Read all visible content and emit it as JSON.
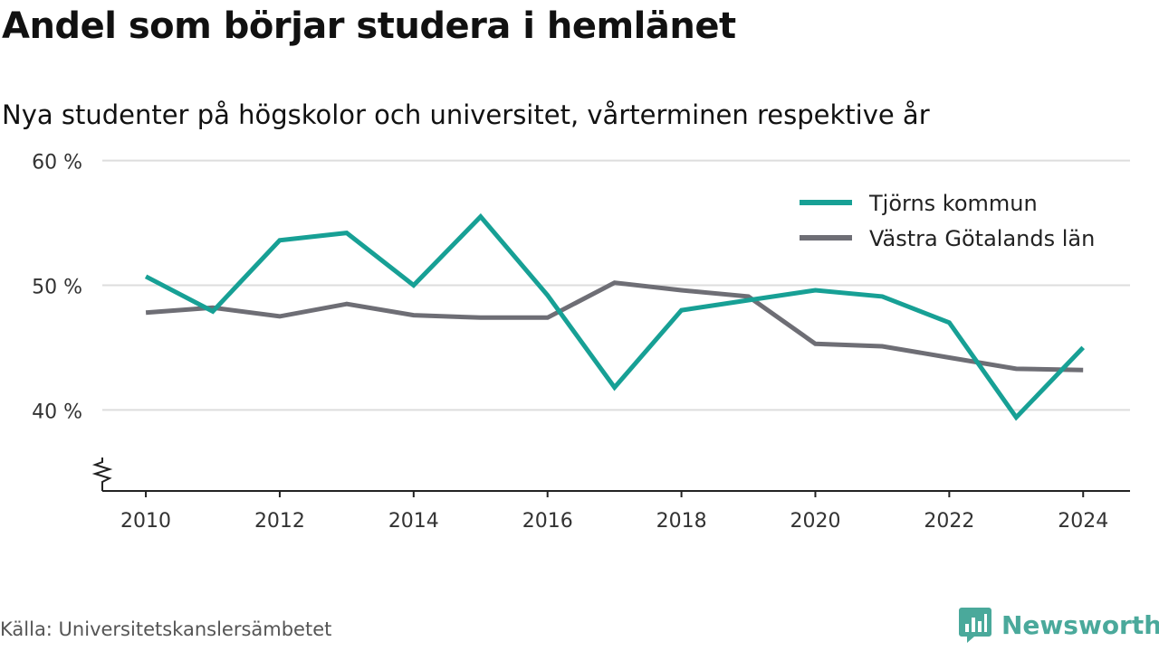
{
  "title": "Andel som börjar studera i hemlänet",
  "subtitle": "Nya studenter på högskolor och universitet, vårterminen respektive år",
  "source": "Källa: Universitetskanslersämbetet",
  "brand": {
    "name": "Newsworthy",
    "icon": "newsworthy-logo-icon",
    "color": "#4aa99b"
  },
  "chart_data": {
    "type": "line",
    "x": [
      2010,
      2011,
      2012,
      2013,
      2014,
      2015,
      2016,
      2017,
      2018,
      2019,
      2020,
      2021,
      2022,
      2023,
      2024
    ],
    "x_ticks": [
      "2010",
      "2012",
      "2014",
      "2016",
      "2018",
      "2020",
      "2022",
      "2024"
    ],
    "y_ticks": [
      "40 %",
      "50 %",
      "60 %"
    ],
    "ylim": [
      33.5,
      62
    ],
    "y_axis_break": true,
    "grid": "horizontal",
    "legend_position": "top-right",
    "series": [
      {
        "name": "Tjörns kommun",
        "color": "#17a095",
        "values": [
          50.7,
          47.9,
          53.6,
          54.2,
          50.0,
          55.5,
          49.2,
          41.8,
          48.0,
          48.8,
          49.6,
          49.1,
          47.0,
          39.4,
          45.0
        ]
      },
      {
        "name": "Västra Götalands län",
        "color": "#6e6e75",
        "values": [
          47.8,
          48.2,
          47.5,
          48.5,
          47.6,
          47.4,
          47.4,
          50.2,
          49.6,
          49.1,
          45.3,
          45.1,
          44.2,
          43.3,
          43.2
        ]
      }
    ]
  }
}
